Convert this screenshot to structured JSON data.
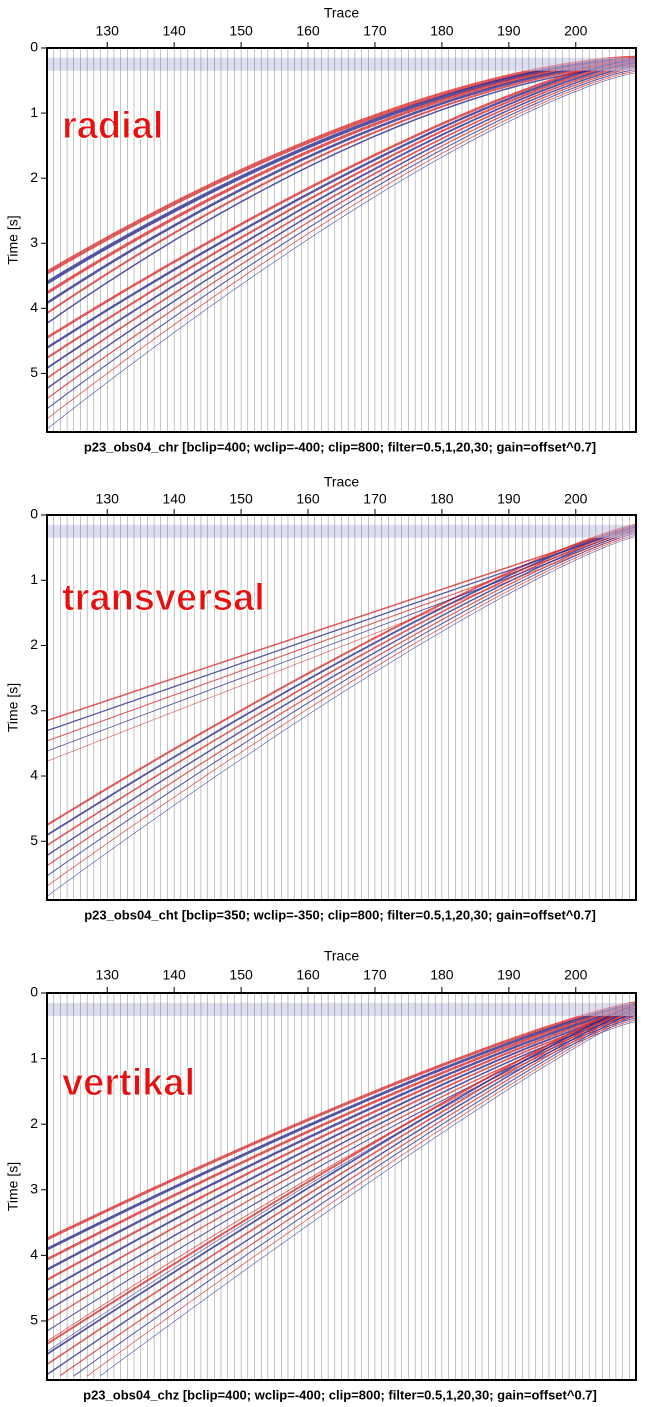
{
  "chart_data": [
    {
      "type": "wiggle",
      "label": "radial",
      "xlabel": "Trace",
      "ylabel": "Time [s]",
      "caption": "p23_obs04_chr [bclip=400; wclip=-400; clip=800; filter=0.5,1,20,30; gain=offset^0.7]",
      "xlim": [
        121,
        209
      ],
      "ylim": [
        0,
        5.9
      ],
      "xticks": [
        130,
        140,
        150,
        160,
        170,
        180,
        190,
        200
      ],
      "yticks": [
        0,
        1,
        2,
        3,
        4,
        5
      ]
    },
    {
      "type": "wiggle",
      "label": "transversal",
      "xlabel": "Trace",
      "ylabel": "Time [s]",
      "caption": "p23_obs04_cht [bclip=350; wclip=-350; clip=800; filter=0.5,1,20,30; gain=offset^0.7]",
      "xlim": [
        121,
        209
      ],
      "ylim": [
        0,
        5.9
      ],
      "xticks": [
        130,
        140,
        150,
        160,
        170,
        180,
        190,
        200
      ],
      "yticks": [
        0,
        1,
        2,
        3,
        4,
        5
      ]
    },
    {
      "type": "wiggle",
      "label": "vertikal",
      "xlabel": "Trace",
      "ylabel": "Time [s]",
      "caption": "p23_obs04_chz [bclip=400; wclip=-400; clip=800; filter=0.5,1,20,30; gain=offset^0.7]",
      "xlim": [
        121,
        209
      ],
      "ylim": [
        0,
        5.9
      ],
      "xticks": [
        130,
        140,
        150,
        160,
        170,
        180,
        190,
        200
      ],
      "yticks": [
        0,
        1,
        2,
        3,
        4,
        5
      ]
    }
  ]
}
